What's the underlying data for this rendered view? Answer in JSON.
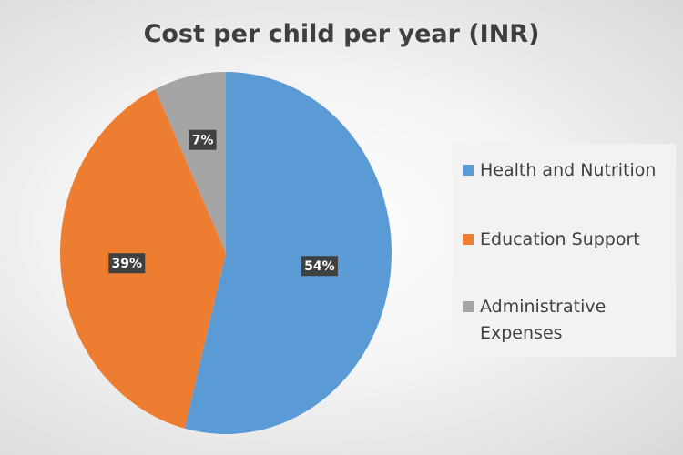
{
  "chart_data": {
    "type": "pie",
    "title": "Cost per child per year (INR)",
    "categories": [
      "Health and Nutrition",
      "Education Support",
      "Administrative Expenses"
    ],
    "values": [
      54,
      39,
      7
    ],
    "data_labels": [
      "54%",
      "39%",
      "7%"
    ],
    "colors": [
      "#5b9bd5",
      "#ed7d31",
      "#a5a5a5"
    ],
    "legend_position": "right"
  }
}
